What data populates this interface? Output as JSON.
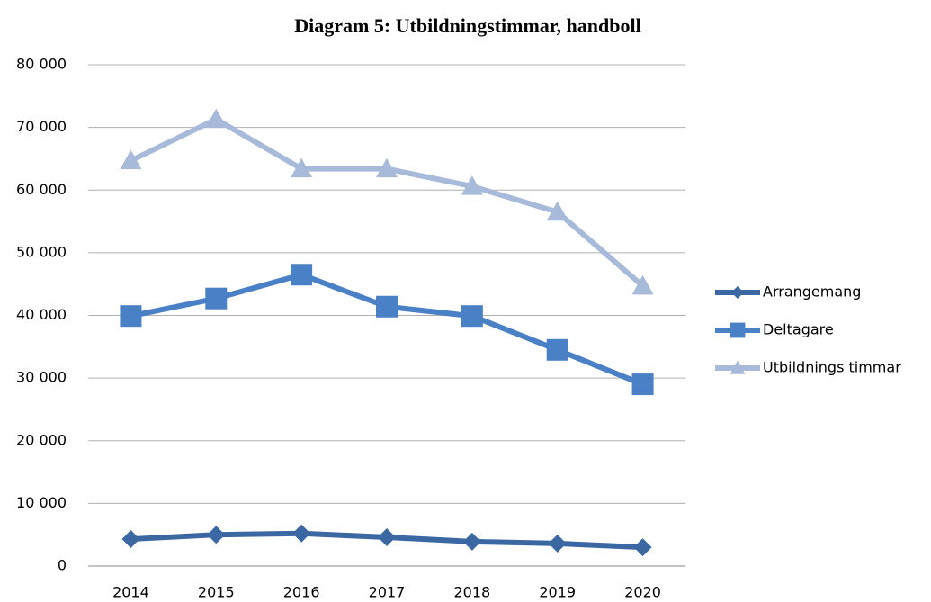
{
  "chart_data": {
    "type": "line",
    "title": "Diagram 5: Utbildningstimmar, handboll",
    "categories": [
      "2014",
      "2015",
      "2016",
      "2017",
      "2018",
      "2019",
      "2020"
    ],
    "series": [
      {
        "name": "Arrangemang",
        "color": "#3b67a3",
        "marker": "diamond",
        "values": [
          4300,
          5000,
          5200,
          4600,
          3900,
          3600,
          3000
        ]
      },
      {
        "name": "Deltagare",
        "color": "#4a80c6",
        "marker": "square",
        "values": [
          39900,
          42700,
          46500,
          41400,
          39900,
          34500,
          29000
        ]
      },
      {
        "name": "Utbildnings timmar",
        "color": "#a7bada",
        "marker": "triangle",
        "values": [
          64700,
          71300,
          63400,
          63400,
          60600,
          56500,
          44700
        ]
      }
    ],
    "ylim": [
      0,
      80000
    ],
    "yticks": [
      0,
      {
        "value": 10000,
        "label": "10 000"
      },
      {
        "value": 20000,
        "label": "20 000"
      },
      {
        "value": 30000,
        "label": "30 000"
      },
      {
        "value": 40000,
        "label": "40 000"
      },
      {
        "value": 50000,
        "label": "50 000"
      },
      {
        "value": 60000,
        "label": "60 000"
      },
      {
        "value": 70000,
        "label": "70 000"
      },
      {
        "value": 80000,
        "label": "80 000"
      }
    ],
    "grid": true,
    "legend": "right"
  }
}
